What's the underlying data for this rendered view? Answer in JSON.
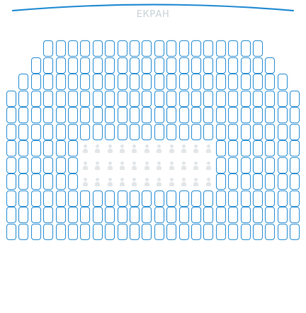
{
  "screen": {
    "label": "ЕКРАН",
    "curve_color": "#2a8fd4",
    "label_color": "#c7d2d8"
  },
  "seat_colors": {
    "available_border": "#2a8fd4",
    "occupied": "#e3e6e8"
  },
  "rows": [
    {
      "seats": 18,
      "occupied": []
    },
    {
      "seats": 20,
      "occupied": []
    },
    {
      "seats": 22,
      "occupied": []
    },
    {
      "seats": 24,
      "occupied": []
    },
    {
      "seats": 24,
      "occupied": []
    },
    {
      "seats": 24,
      "occupied": []
    },
    {
      "seats": 24,
      "occupied": [
        6,
        7,
        8,
        9,
        10,
        11,
        12,
        13,
        14,
        15,
        16
      ]
    },
    {
      "seats": 24,
      "occupied": [
        6,
        7,
        8,
        9,
        10,
        11,
        12,
        13,
        14,
        15,
        16
      ]
    },
    {
      "seats": 24,
      "occupied": [
        6,
        7,
        8,
        9,
        10,
        11,
        12,
        13,
        14,
        15,
        16
      ]
    },
    {
      "seats": 24,
      "occupied": []
    },
    {
      "seats": 24,
      "occupied": []
    },
    {
      "seats": 24,
      "occupied": []
    }
  ]
}
